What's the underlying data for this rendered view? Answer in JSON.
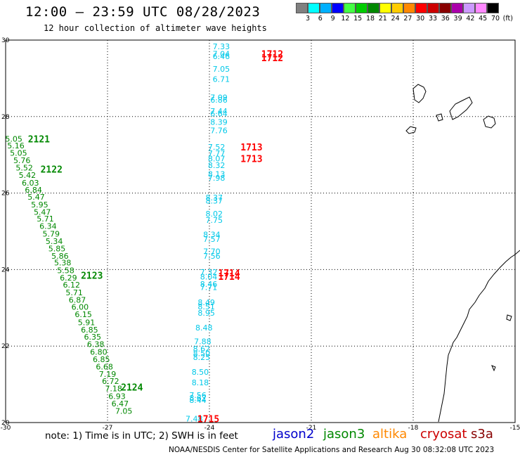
{
  "header": {
    "title": "12:00 – 23:59 UTC 08/28/2023",
    "subtitle": "12 hour collection of altimeter wave heights"
  },
  "colorbar": {
    "colors": [
      "#808080",
      "#00ffff",
      "#00b0ff",
      "#0000ff",
      "#44ff44",
      "#00cc00",
      "#008800",
      "#ffff00",
      "#ffcc00",
      "#ff8800",
      "#ff0000",
      "#cc0000",
      "#880000",
      "#aa00aa",
      "#cc99ff",
      "#ff88ff",
      "#000000"
    ],
    "labels": [
      "3",
      "6",
      "9",
      "12",
      "15",
      "18",
      "21",
      "24",
      "27",
      "30",
      "33",
      "36",
      "39",
      "42",
      "45",
      "70",
      "(ft)"
    ]
  },
  "map": {
    "x_ticks": [
      "-30",
      "-27",
      "-24",
      "-21",
      "-18",
      "-15"
    ],
    "y_ticks": [
      "30",
      "28",
      "26",
      "24",
      "22",
      "20"
    ],
    "lon_range": [
      -30,
      -15
    ],
    "lat_range": [
      20,
      30
    ],
    "colors": {
      "cyan": "#00c8e8",
      "green": "#008800",
      "red": "#ff0000"
    },
    "tracks": [
      {
        "name": "green-track",
        "color": "green",
        "points": [
          {
            "lon": -29.76,
            "lat": 27.42,
            "v": "5.05"
          },
          {
            "lon": -29.7,
            "lat": 27.24,
            "v": "5.16"
          },
          {
            "lon": -29.62,
            "lat": 27.05,
            "v": "5.05"
          },
          {
            "lon": -29.52,
            "lat": 26.86,
            "v": "5.76"
          },
          {
            "lon": -29.45,
            "lat": 26.66,
            "v": "5.52"
          },
          {
            "lon": -29.36,
            "lat": 26.47,
            "v": "5.42"
          },
          {
            "lon": -29.27,
            "lat": 26.27,
            "v": "6.03"
          },
          {
            "lon": -29.18,
            "lat": 26.08,
            "v": "6.84"
          },
          {
            "lon": -29.1,
            "lat": 25.9,
            "v": "5.47"
          },
          {
            "lon": -29.0,
            "lat": 25.7,
            "v": "5.95"
          },
          {
            "lon": -28.92,
            "lat": 25.51,
            "v": "5.47"
          },
          {
            "lon": -28.83,
            "lat": 25.33,
            "v": "5.71"
          },
          {
            "lon": -28.75,
            "lat": 25.14,
            "v": "6.34"
          },
          {
            "lon": -28.66,
            "lat": 24.94,
            "v": "5.79"
          },
          {
            "lon": -28.57,
            "lat": 24.74,
            "v": "5.34"
          },
          {
            "lon": -28.49,
            "lat": 24.55,
            "v": "5.85"
          },
          {
            "lon": -28.4,
            "lat": 24.36,
            "v": "5.86"
          },
          {
            "lon": -28.32,
            "lat": 24.18,
            "v": "5.38"
          },
          {
            "lon": -28.23,
            "lat": 23.98,
            "v": "5.58"
          },
          {
            "lon": -28.15,
            "lat": 23.79,
            "v": "6.29"
          },
          {
            "lon": -28.06,
            "lat": 23.6,
            "v": "6.12"
          },
          {
            "lon": -27.98,
            "lat": 23.4,
            "v": "5.71"
          },
          {
            "lon": -27.89,
            "lat": 23.21,
            "v": "6.87"
          },
          {
            "lon": -27.81,
            "lat": 23.02,
            "v": "6.00"
          },
          {
            "lon": -27.71,
            "lat": 22.83,
            "v": "6.15"
          },
          {
            "lon": -27.62,
            "lat": 22.62,
            "v": "5.91"
          },
          {
            "lon": -27.53,
            "lat": 22.43,
            "v": "6.85"
          },
          {
            "lon": -27.44,
            "lat": 22.24,
            "v": "6.35"
          },
          {
            "lon": -27.35,
            "lat": 22.05,
            "v": "6.38"
          },
          {
            "lon": -27.26,
            "lat": 21.85,
            "v": "6.80"
          },
          {
            "lon": -27.18,
            "lat": 21.65,
            "v": "6.85"
          },
          {
            "lon": -27.09,
            "lat": 21.46,
            "v": "6.68"
          },
          {
            "lon": -27.0,
            "lat": 21.27,
            "v": "7.19"
          },
          {
            "lon": -26.91,
            "lat": 21.08,
            "v": "6.72"
          },
          {
            "lon": -26.82,
            "lat": 20.89,
            "v": "7.18"
          },
          {
            "lon": -26.72,
            "lat": 20.69,
            "v": "6.93"
          },
          {
            "lon": -26.63,
            "lat": 20.5,
            "v": "6.47"
          },
          {
            "lon": -26.52,
            "lat": 20.3,
            "v": "7.05"
          }
        ],
        "times": [
          {
            "lon": -29.02,
            "lat": 27.42,
            "v": "2121"
          },
          {
            "lon": -28.65,
            "lat": 26.63,
            "v": "2122"
          },
          {
            "lon": -27.46,
            "lat": 23.85,
            "v": "2123"
          },
          {
            "lon": -26.28,
            "lat": 20.93,
            "v": "2124"
          }
        ]
      },
      {
        "name": "cyan-track",
        "color": "cyan",
        "points": [
          {
            "lon": -23.65,
            "lat": 29.83,
            "v": "7.33"
          },
          {
            "lon": -23.65,
            "lat": 29.64,
            "v": "7.04"
          },
          {
            "lon": -23.65,
            "lat": 29.58,
            "v": "6.46"
          },
          {
            "lon": -23.65,
            "lat": 29.25,
            "v": "7.05"
          },
          {
            "lon": -23.65,
            "lat": 28.98,
            "v": "6.71"
          },
          {
            "lon": -23.72,
            "lat": 28.5,
            "v": "7.09"
          },
          {
            "lon": -23.72,
            "lat": 28.44,
            "v": "6.86"
          },
          {
            "lon": -23.72,
            "lat": 28.14,
            "v": "7.44"
          },
          {
            "lon": -23.72,
            "lat": 28.08,
            "v": "6.64"
          },
          {
            "lon": -23.72,
            "lat": 27.86,
            "v": "8.39"
          },
          {
            "lon": -23.72,
            "lat": 27.64,
            "v": "7.76"
          },
          {
            "lon": -23.79,
            "lat": 27.21,
            "v": "7.52"
          },
          {
            "lon": -23.79,
            "lat": 27.04,
            "v": "7.77"
          },
          {
            "lon": -23.79,
            "lat": 26.9,
            "v": "8.07"
          },
          {
            "lon": -23.79,
            "lat": 26.73,
            "v": "8.32"
          },
          {
            "lon": -23.79,
            "lat": 26.5,
            "v": "8.13"
          },
          {
            "lon": -23.79,
            "lat": 26.4,
            "v": "7.98"
          },
          {
            "lon": -23.86,
            "lat": 25.88,
            "v": "8.37"
          },
          {
            "lon": -23.86,
            "lat": 25.8,
            "v": "8.37"
          },
          {
            "lon": -23.86,
            "lat": 25.46,
            "v": "8.02"
          },
          {
            "lon": -23.86,
            "lat": 25.29,
            "v": "7.75"
          },
          {
            "lon": -23.93,
            "lat": 24.92,
            "v": "8.34"
          },
          {
            "lon": -23.93,
            "lat": 24.8,
            "v": "7.57"
          },
          {
            "lon": -23.93,
            "lat": 24.48,
            "v": "7.70"
          },
          {
            "lon": -23.93,
            "lat": 24.36,
            "v": "7.56"
          },
          {
            "lon": -24.02,
            "lat": 23.93,
            "v": "7.32"
          },
          {
            "lon": -24.02,
            "lat": 23.81,
            "v": "8.04"
          },
          {
            "lon": -24.02,
            "lat": 23.62,
            "v": "8.46"
          },
          {
            "lon": -24.02,
            "lat": 23.54,
            "v": "7.71"
          },
          {
            "lon": -24.09,
            "lat": 23.14,
            "v": "8.49"
          },
          {
            "lon": -24.09,
            "lat": 23.03,
            "v": "8.51"
          },
          {
            "lon": -24.09,
            "lat": 22.87,
            "v": "8.95"
          },
          {
            "lon": -24.16,
            "lat": 22.48,
            "v": "8.48"
          },
          {
            "lon": -24.2,
            "lat": 22.12,
            "v": "7.88"
          },
          {
            "lon": -24.23,
            "lat": 21.93,
            "v": "8.62"
          },
          {
            "lon": -24.23,
            "lat": 21.81,
            "v": "8.50"
          },
          {
            "lon": -24.23,
            "lat": 21.71,
            "v": "8.25"
          },
          {
            "lon": -24.27,
            "lat": 21.32,
            "v": "8.50"
          },
          {
            "lon": -24.27,
            "lat": 21.05,
            "v": "8.18"
          },
          {
            "lon": -24.34,
            "lat": 20.72,
            "v": "7.56"
          },
          {
            "lon": -24.34,
            "lat": 20.64,
            "v": "8.62"
          },
          {
            "lon": -24.34,
            "lat": 20.59,
            "v": "8.44"
          },
          {
            "lon": -24.45,
            "lat": 20.1,
            "v": "7.48"
          }
        ],
        "times": []
      },
      {
        "name": "red-time-labels",
        "color": "red",
        "points": [],
        "times": [
          {
            "lon": -22.15,
            "lat": 29.64,
            "v": "1712"
          },
          {
            "lon": -22.15,
            "lat": 29.54,
            "v": "1712"
          },
          {
            "lon": -22.76,
            "lat": 27.21,
            "v": "1713"
          },
          {
            "lon": -22.76,
            "lat": 26.9,
            "v": "1713"
          },
          {
            "lon": -23.42,
            "lat": 23.92,
            "v": "1714"
          },
          {
            "lon": -23.42,
            "lat": 23.82,
            "v": "1714"
          },
          {
            "lon": -24.03,
            "lat": 20.1,
            "v": "1715"
          }
        ]
      }
    ]
  },
  "note": "note:  1) Time is in UTC; 2) SWH is in feet",
  "legend": [
    {
      "label": "jason2",
      "color": "#0000cc"
    },
    {
      "label": "jason3",
      "color": "#008800"
    },
    {
      "label": "altika",
      "color": "#ff8800"
    },
    {
      "label": "cryosat",
      "color": "#cc0000"
    },
    {
      "label": "s3a",
      "color": "#880000"
    }
  ],
  "footer": "NOAA/NESDIS Center for Satellite Applications and Research    Aug 30 08:32:08 UTC 2023"
}
